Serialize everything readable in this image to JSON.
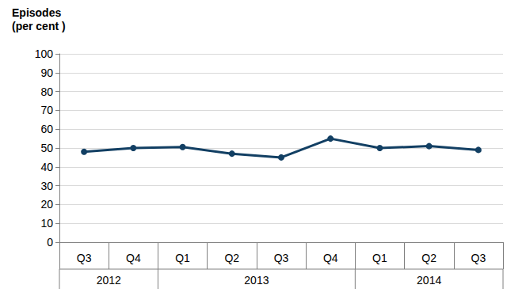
{
  "chart_data": {
    "type": "line",
    "ylabel": "Episodes\n(per cent )",
    "categories": [
      "Q3",
      "Q4",
      "Q1",
      "Q2",
      "Q3",
      "Q4",
      "Q1",
      "Q2",
      "Q3"
    ],
    "category_groups": [
      "2012",
      "2012",
      "2013",
      "2013",
      "2013",
      "2013",
      "2014",
      "2014",
      "2014"
    ],
    "values": [
      48,
      50,
      50.5,
      47,
      45,
      55,
      50,
      51,
      49
    ],
    "color": "#123f63",
    "marker": "circle",
    "ylim": [
      0,
      100
    ],
    "yticks": [
      0,
      10,
      20,
      30,
      40,
      50,
      60,
      70,
      80,
      90,
      100
    ],
    "grid": true
  }
}
